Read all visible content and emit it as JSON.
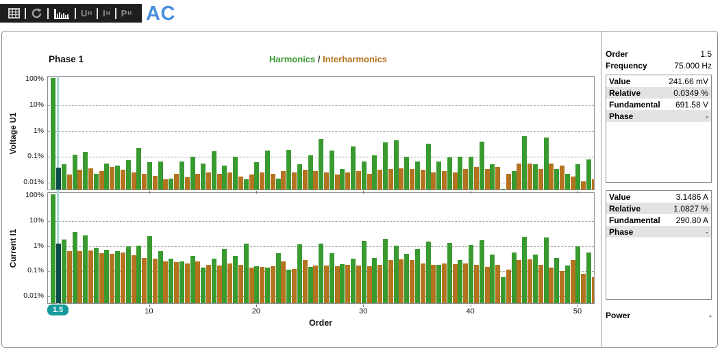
{
  "toolbar": {
    "icons": [
      {
        "name": "table-icon"
      },
      {
        "name": "refresh-icon"
      },
      {
        "name": "harmonics-chart-icon",
        "active": true
      }
    ],
    "buttons": [
      {
        "label": "U",
        "sub": "H"
      },
      {
        "label": "I",
        "sub": "H"
      },
      {
        "label": "P",
        "sub": "H"
      }
    ],
    "title": "AC"
  },
  "header": {
    "phase": "Phase 1",
    "legend": {
      "harmonics": "Harmonics",
      "separator": " / ",
      "interharmonics": "Interharmonics"
    }
  },
  "colors": {
    "harmonics": "#399a30",
    "interharmonics": "#b4731f",
    "selected_bar": "#0c4b48",
    "cursor_line": "#a9d7da",
    "badge_bg": "#179a9b",
    "accent_blue": "#4a8fdf"
  },
  "cursor": {
    "order": 1.5,
    "badge": "1.5"
  },
  "right_panel": {
    "order_label": "Order",
    "order_value": "1.5",
    "frequency_label": "Frequency",
    "frequency_value": "75.000 Hz",
    "voltage_box": {
      "rows": [
        {
          "label": "Value",
          "value": "241.66 mV"
        },
        {
          "label": "Relative",
          "value": "0.0349 %"
        },
        {
          "label": "Fundamental",
          "value": "691.58 V"
        },
        {
          "label": "Phase",
          "value": "-"
        }
      ]
    },
    "current_box": {
      "rows": [
        {
          "label": "Value",
          "value": "3.1486 A"
        },
        {
          "label": "Relative",
          "value": "1.0827 %"
        },
        {
          "label": "Fundamental",
          "value": "290.80 A"
        },
        {
          "label": "Phase",
          "value": "-"
        }
      ]
    },
    "power_label": "Power",
    "power_value": "-"
  },
  "chart_data": [
    {
      "type": "bar",
      "ylabel": "Voltage U1",
      "y_scale": "log",
      "y_ticks": [
        "100%",
        "10%",
        "1%",
        "0.1%",
        "0.01%"
      ],
      "y_tick_values": [
        100,
        10,
        1,
        0.1,
        0.01
      ],
      "ylim": [
        0.005,
        100
      ],
      "x_ticks": [
        10,
        20,
        30,
        40,
        50
      ],
      "xlabel": "Order",
      "selected": {
        "order": 1.5,
        "relative_percent": 0.0349
      },
      "series": [
        {
          "name": "Harmonics",
          "first_order": 1,
          "step": 1,
          "values": [
            100,
            0.045,
            0.105,
            0.135,
            0.02,
            0.05,
            0.04,
            0.065,
            0.2,
            0.055,
            0.06,
            0.013,
            0.06,
            0.09,
            0.05,
            0.15,
            0.04,
            0.09,
            0.012,
            0.055,
            0.16,
            0.013,
            0.17,
            0.045,
            0.1,
            0.45,
            0.16,
            0.03,
            0.22,
            0.06,
            0.1,
            0.32,
            0.4,
            0.09,
            0.06,
            0.28,
            0.06,
            0.085,
            0.09,
            0.09,
            0.34,
            0.045,
            0.005,
            0.025,
            0.55,
            0.045,
            0.5,
            0.03,
            0.02,
            0.045,
            0.07
          ]
        },
        {
          "name": "Interharmonics",
          "first_order": 1.5,
          "step": 1,
          "values": [
            0.0349,
            0.018,
            0.028,
            0.032,
            0.025,
            0.035,
            0.028,
            0.022,
            0.02,
            0.016,
            0.012,
            0.02,
            0.014,
            0.02,
            0.022,
            0.02,
            0.022,
            0.015,
            0.018,
            0.022,
            0.02,
            0.025,
            0.022,
            0.028,
            0.025,
            0.022,
            0.018,
            0.022,
            0.025,
            0.02,
            0.028,
            0.03,
            0.032,
            0.03,
            0.028,
            0.022,
            0.025,
            0.022,
            0.03,
            0.035,
            0.03,
            0.035,
            0.02,
            0.05,
            0.05,
            0.03,
            0.05,
            0.04,
            0.015,
            0.01,
            0.012
          ]
        }
      ]
    },
    {
      "type": "bar",
      "ylabel": "Current I1",
      "y_scale": "log",
      "y_ticks": [
        "100%",
        "10%",
        "1%",
        "0.1%",
        "0.01%"
      ],
      "y_tick_values": [
        100,
        10,
        1,
        0.1,
        0.01
      ],
      "ylim": [
        0.005,
        100
      ],
      "x_ticks": [
        10,
        20,
        30,
        40,
        50
      ],
      "xlabel": "Order",
      "selected": {
        "order": 1.5,
        "relative_percent": 1.0827
      },
      "series": [
        {
          "name": "Harmonics",
          "first_order": 1,
          "step": 1,
          "values": [
            100,
            1.6,
            3.1,
            2.4,
            0.75,
            0.62,
            0.55,
            0.85,
            0.9,
            2.2,
            0.55,
            0.28,
            0.22,
            0.35,
            0.12,
            0.28,
            0.65,
            0.35,
            1.1,
            0.14,
            0.12,
            0.45,
            0.1,
            1.05,
            0.13,
            1.1,
            0.45,
            0.17,
            0.28,
            1.4,
            0.3,
            1.7,
            0.9,
            0.42,
            0.65,
            1.3,
            0.16,
            1.15,
            0.24,
            0.95,
            1.5,
            0.4,
            0.05,
            0.5,
            2.1,
            0.4,
            1.9,
            0.3,
            0.15,
            0.85,
            0.5
          ]
        },
        {
          "name": "Interharmonics",
          "first_order": 1.5,
          "step": 1,
          "values": [
            1.0827,
            0.55,
            0.55,
            0.6,
            0.45,
            0.42,
            0.48,
            0.38,
            0.3,
            0.28,
            0.22,
            0.2,
            0.18,
            0.22,
            0.16,
            0.15,
            0.18,
            0.16,
            0.12,
            0.13,
            0.14,
            0.22,
            0.11,
            0.25,
            0.15,
            0.15,
            0.14,
            0.16,
            0.15,
            0.14,
            0.16,
            0.24,
            0.26,
            0.25,
            0.18,
            0.16,
            0.18,
            0.17,
            0.18,
            0.16,
            0.13,
            0.16,
            0.1,
            0.24,
            0.26,
            0.16,
            0.12,
            0.09,
            0.24,
            0.07,
            0.05
          ]
        }
      ]
    }
  ]
}
